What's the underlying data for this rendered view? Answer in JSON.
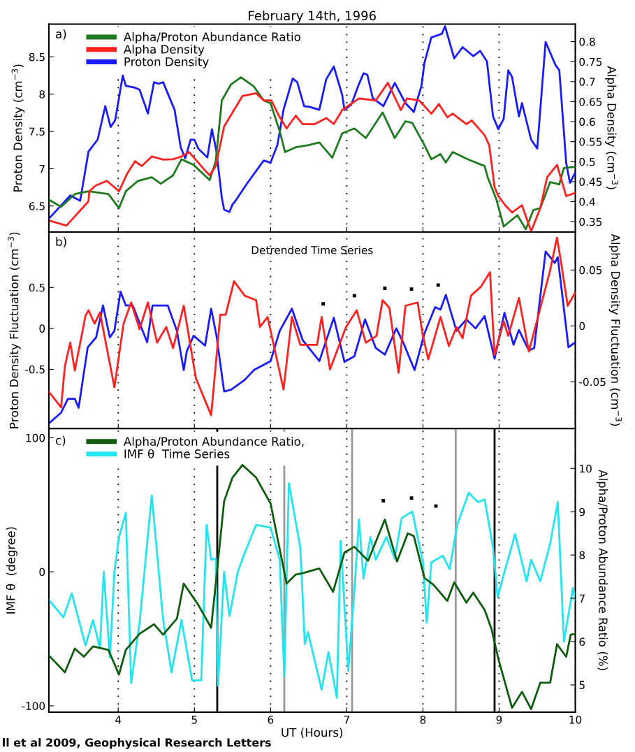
{
  "chart_data": [
    {
      "type": "line",
      "title": "February 14th, 1996",
      "ylabel": "Proton Density (cm$^{−3}$)",
      "y2label": "Alpha Density (cm$^{−3}$)",
      "annotations": [
        "a)"
      ],
      "xlim": [
        3.09,
        10
      ],
      "xticks": [
        4,
        5,
        6,
        7,
        8,
        9,
        10
      ],
      "ylim": [
        6.15,
        8.94
      ],
      "yticks": [
        6.5,
        7,
        7.5,
        8,
        8.5
      ],
      "y2lim": [
        0.324,
        0.844
      ],
      "y2ticks": [
        0.35,
        0.4,
        0.45,
        0.5,
        0.55,
        0.6,
        0.65,
        0.7,
        0.75,
        0.8
      ],
      "grid": "x",
      "tick_labels": "y",
      "legend": "top left",
      "series": [
        {
          "name": "Alpha/Proton Abundance Ratio",
          "color": "#1e7a1e",
          "axis": "y2",
          "x": [
            3.09,
            3.25,
            3.43,
            3.61,
            3.87,
            4.01,
            4.1,
            4.26,
            4.44,
            4.56,
            4.72,
            4.83,
            4.99,
            5.2,
            5.28,
            5.36,
            5.48,
            5.61,
            5.78,
            5.91,
            6.0,
            6.12,
            6.19,
            6.33,
            6.49,
            6.64,
            6.81,
            6.94,
            7.1,
            7.25,
            7.47,
            7.63,
            7.77,
            7.86,
            8.02,
            8.11,
            8.23,
            8.3,
            8.39,
            8.6,
            8.81,
            8.85,
            8.96,
            9.06,
            9.24,
            9.35,
            9.45,
            9.54,
            9.67,
            9.79,
            9.85,
            10.0
          ],
          "values": [
            0.405,
            0.387,
            0.419,
            0.426,
            0.419,
            0.384,
            0.426,
            0.452,
            0.461,
            0.445,
            0.466,
            0.506,
            0.492,
            0.454,
            0.501,
            0.653,
            0.693,
            0.711,
            0.688,
            0.653,
            0.646,
            0.576,
            0.524,
            0.536,
            0.541,
            0.548,
            0.51,
            0.571,
            0.583,
            0.559,
            0.623,
            0.559,
            0.601,
            0.597,
            0.541,
            0.506,
            0.519,
            0.498,
            0.524,
            0.505,
            0.489,
            0.461,
            0.408,
            0.338,
            0.366,
            0.331,
            0.379,
            0.384,
            0.449,
            0.443,
            0.484,
            0.487
          ]
        },
        {
          "name": "Alpha Density",
          "color": "#ff2020",
          "axis": "y2",
          "x": [
            3.11,
            3.32,
            3.61,
            3.62,
            3.7,
            3.85,
            4.01,
            4.12,
            4.22,
            4.31,
            4.44,
            4.59,
            4.72,
            4.83,
            4.93,
            5.14,
            5.2,
            5.28,
            5.39,
            5.5,
            5.63,
            5.81,
            5.91,
            6.01,
            6.12,
            6.21,
            6.33,
            6.42,
            6.58,
            6.73,
            6.83,
            6.94,
            7.16,
            7.38,
            7.54,
            7.71,
            7.79,
            7.95,
            8.11,
            8.21,
            8.32,
            8.39,
            8.57,
            8.64,
            8.81,
            8.87,
            8.94,
            8.99,
            9.08,
            9.17,
            9.3,
            9.42,
            9.54,
            9.63,
            9.76,
            9.88,
            10.0
          ],
          "values": [
            0.352,
            0.34,
            0.401,
            0.426,
            0.44,
            0.452,
            0.426,
            0.471,
            0.501,
            0.489,
            0.513,
            0.505,
            0.506,
            0.513,
            0.524,
            0.478,
            0.466,
            0.489,
            0.588,
            0.623,
            0.664,
            0.671,
            0.653,
            0.653,
            0.611,
            0.583,
            0.615,
            0.594,
            0.594,
            0.609,
            0.594,
            0.629,
            0.658,
            0.653,
            0.697,
            0.629,
            0.658,
            0.653,
            0.62,
            0.644,
            0.611,
            0.62,
            0.594,
            0.603,
            0.566,
            0.541,
            0.436,
            0.414,
            0.391,
            0.373,
            0.391,
            0.326,
            0.384,
            0.461,
            0.492,
            0.414,
            0.422
          ]
        },
        {
          "name": "Proton Density",
          "color": "#1a1aff",
          "axis": "y",
          "x": [
            3.09,
            3.37,
            3.5,
            3.61,
            3.73,
            3.83,
            3.9,
            3.96,
            4.06,
            4.1,
            4.21,
            4.28,
            4.39,
            4.47,
            4.53,
            4.59,
            4.65,
            4.74,
            4.82,
            4.88,
            4.95,
            5.0,
            5.05,
            5.17,
            5.23,
            5.29,
            5.36,
            5.39,
            5.46,
            5.5,
            5.54,
            5.69,
            5.91,
            6.0,
            6.09,
            6.17,
            6.29,
            6.35,
            6.44,
            6.51,
            6.64,
            6.73,
            6.83,
            6.94,
            6.97,
            7.06,
            7.15,
            7.22,
            7.27,
            7.34,
            7.48,
            7.63,
            7.77,
            7.88,
            7.98,
            8.02,
            8.11,
            8.25,
            8.29,
            8.41,
            8.52,
            8.66,
            8.75,
            8.84,
            8.92,
            8.99,
            9.06,
            9.12,
            9.17,
            9.26,
            9.3,
            9.42,
            9.5,
            9.61,
            9.74,
            9.79,
            9.88,
            9.93,
            10.0
          ],
          "values": [
            6.33,
            6.64,
            6.57,
            7.23,
            7.39,
            7.84,
            7.56,
            7.65,
            8.25,
            8.11,
            8.09,
            8.06,
            7.74,
            8.16,
            8.14,
            8.16,
            8.01,
            7.79,
            7.29,
            7.14,
            7.39,
            7.39,
            7.27,
            7.15,
            7.53,
            7.23,
            6.61,
            6.45,
            6.42,
            6.52,
            6.57,
            6.8,
            7.11,
            7.08,
            7.32,
            7.79,
            8.21,
            8.16,
            7.84,
            7.83,
            7.79,
            8.2,
            8.37,
            7.99,
            7.79,
            7.86,
            8.11,
            8.28,
            8.26,
            7.95,
            7.84,
            8.15,
            7.88,
            7.76,
            8.11,
            8.42,
            8.76,
            8.81,
            8.91,
            8.48,
            8.63,
            8.51,
            8.58,
            8.44,
            7.7,
            7.53,
            7.67,
            8.32,
            8.23,
            7.7,
            7.88,
            7.39,
            7.27,
            8.7,
            8.39,
            8.32,
            7.08,
            6.81,
            6.95
          ]
        }
      ]
    },
    {
      "type": "line",
      "ylabel": "Proton Density Fluctuation (cm$^{−3}$)",
      "y2label": "Alpha Density Fluctuation (cm$^{−3}$)",
      "annotations": [
        "b)",
        "Detrended Time Series"
      ],
      "xlim": [
        3.09,
        10
      ],
      "xticks": [
        4,
        5,
        6,
        7,
        8,
        9,
        10
      ],
      "ylim": [
        -1.225,
        1.177
      ],
      "yticks": [
        -0.5,
        0,
        0.5
      ],
      "y2lim": [
        -0.092,
        0.084
      ],
      "y2ticks": [
        -0.05,
        0,
        0.05
      ],
      "grid": "x",
      "tick_labels": "y",
      "series": [
        {
          "color": "#ff2020",
          "axis": "y2",
          "x": [
            3.09,
            3.25,
            3.3,
            3.37,
            3.43,
            3.57,
            3.61,
            3.69,
            3.76,
            3.95,
            4.07,
            4.17,
            4.28,
            4.39,
            4.51,
            4.63,
            4.72,
            4.86,
            5.02,
            5.22,
            5.34,
            5.41,
            5.52,
            5.66,
            5.81,
            5.86,
            5.96,
            6.17,
            6.28,
            6.39,
            6.61,
            6.67,
            6.78,
            6.99,
            7.13,
            7.25,
            7.39,
            7.47,
            7.56,
            7.68,
            7.77,
            7.93,
            8.0,
            8.07,
            8.23,
            8.34,
            8.44,
            8.52,
            8.63,
            8.76,
            8.88,
            8.94,
            9.06,
            9.12,
            9.26,
            9.39,
            9.51,
            9.67,
            9.76,
            9.82,
            9.9,
            10.0
          ],
          "values": [
            -0.059,
            -0.073,
            -0.036,
            -0.015,
            -0.04,
            0.009,
            0.014,
            0.002,
            0.012,
            -0.055,
            0.002,
            0.021,
            -0.003,
            0.021,
            -0.015,
            -0.001,
            -0.02,
            0.018,
            -0.047,
            -0.08,
            0.01,
            0.01,
            0.04,
            0.027,
            0.023,
            -0.001,
            0.008,
            -0.057,
            0.008,
            -0.017,
            -0.017,
            0.008,
            -0.039,
            -0.001,
            0.014,
            -0.015,
            -0.009,
            0.023,
            0.016,
            -0.042,
            0.018,
            0.021,
            -0.009,
            -0.03,
            0.008,
            -0.018,
            -0.001,
            -0.011,
            0.027,
            0.035,
            0.048,
            -0.026,
            0.004,
            -0.009,
            0.025,
            -0.023,
            0.008,
            0.05,
            0.079,
            0.054,
            0.018,
            0.03
          ]
        },
        {
          "color": "#1a1aff",
          "axis": "y",
          "x": [
            3.09,
            3.25,
            3.34,
            3.43,
            3.48,
            3.6,
            3.71,
            3.8,
            3.89,
            3.95,
            4.03,
            4.1,
            4.19,
            4.38,
            4.45,
            4.58,
            4.65,
            4.77,
            4.86,
            4.9,
            4.99,
            5.14,
            5.22,
            5.29,
            5.39,
            5.48,
            5.66,
            5.78,
            6.0,
            6.12,
            6.28,
            6.42,
            6.64,
            6.83,
            6.97,
            7.1,
            7.24,
            7.38,
            7.5,
            7.65,
            7.74,
            7.89,
            8.02,
            8.16,
            8.23,
            8.3,
            8.44,
            8.57,
            8.69,
            8.81,
            8.94,
            9.07,
            9.19,
            9.26,
            9.39,
            9.46,
            9.61,
            9.73,
            9.77,
            9.91,
            10.0
          ],
          "values": [
            -1.16,
            -1.03,
            -0.86,
            -0.86,
            -0.97,
            -0.23,
            -0.11,
            0.28,
            -0.11,
            -0.03,
            0.45,
            0.28,
            0.28,
            -0.17,
            0.28,
            0.28,
            0.28,
            -0.03,
            -0.51,
            -0.28,
            -0.09,
            -0.21,
            0.24,
            -0.09,
            -0.77,
            -0.75,
            -0.63,
            -0.51,
            -0.4,
            -0.03,
            0.24,
            -0.14,
            -0.4,
            0.13,
            -0.41,
            -0.34,
            0.11,
            -0.24,
            -0.32,
            0.0,
            -0.17,
            -0.51,
            -0.06,
            0.26,
            0.23,
            0.41,
            -0.03,
            0.11,
            0.0,
            0.15,
            -0.37,
            0.19,
            -0.2,
            -0.02,
            -0.27,
            -0.24,
            0.94,
            0.8,
            0.87,
            -0.23,
            -0.17
          ]
        },
        {
          "type": "scatter",
          "color": "#000000",
          "axis": "y",
          "marker": "square",
          "x": [
            6.69,
            7.1,
            7.5,
            7.85,
            8.2
          ],
          "values": [
            0.3,
            0.4,
            0.49,
            0.48,
            0.53
          ]
        }
      ]
    },
    {
      "type": "line",
      "xlabel": "UT (Hours)",
      "ylabel": "IMF θ  (degree)",
      "y2label": "Alpha/Proton Abundance Ratio (%)",
      "annotations": [
        "c)",
        "ll et al 2009, Geophysical Research Letters"
      ],
      "xlim": [
        3.09,
        10
      ],
      "xticks": [
        4,
        5,
        6,
        7,
        8,
        9,
        10
      ],
      "ylim": [
        -104.7,
        106.8
      ],
      "yticks": [
        -100,
        0,
        100
      ],
      "y2lim": [
        4.37,
        10.92
      ],
      "y2ticks": [
        5,
        6,
        7,
        8,
        9,
        10
      ],
      "grid": "x",
      "legend": "top left",
      "ref_lines": [
        {
          "axis": "x",
          "value": 5.3,
          "color": "#000000"
        },
        {
          "axis": "x",
          "value": 6.18,
          "color": "#999999"
        },
        {
          "axis": "x",
          "value": 7.07,
          "color": "#999999"
        },
        {
          "axis": "x",
          "value": 8.43,
          "color": "#999999"
        },
        {
          "axis": "x",
          "value": 8.94,
          "color": "#000000"
        }
      ],
      "series": [
        {
          "name": "Alpha/Proton Abundance Ratio,",
          "color": "#0d5c0d",
          "axis": "y2",
          "x": [
            3.09,
            3.3,
            3.43,
            3.55,
            3.67,
            3.87,
            4.01,
            4.1,
            4.28,
            4.47,
            4.59,
            4.77,
            4.86,
            5.05,
            5.22,
            5.31,
            5.39,
            5.5,
            5.63,
            5.81,
            6.0,
            6.21,
            6.33,
            6.42,
            6.64,
            6.82,
            6.97,
            7.1,
            7.28,
            7.5,
            7.66,
            7.8,
            7.88,
            8.02,
            8.14,
            8.32,
            8.41,
            8.57,
            8.66,
            8.81,
            8.9,
            8.99,
            9.17,
            9.3,
            9.42,
            9.54,
            9.67,
            9.76,
            9.88,
            9.94,
            10.0
          ],
          "values": [
            5.68,
            5.29,
            5.84,
            5.65,
            5.89,
            5.81,
            5.24,
            5.81,
            6.18,
            6.4,
            6.16,
            6.53,
            7.34,
            6.85,
            6.32,
            7.85,
            9.24,
            9.79,
            10.08,
            9.79,
            9.19,
            7.34,
            7.55,
            7.58,
            7.69,
            7.15,
            8.06,
            8.19,
            7.87,
            8.82,
            7.85,
            8.5,
            8.44,
            7.47,
            7.31,
            6.94,
            7.37,
            6.9,
            7.13,
            6.73,
            6.29,
            5.6,
            4.47,
            4.84,
            4.44,
            5.05,
            5.05,
            5.94,
            5.65,
            6.16,
            6.18
          ]
        },
        {
          "name": "IMF θ  Time Series",
          "color": "#22e5f0",
          "axis": "y",
          "x": [
            3.09,
            3.28,
            3.39,
            3.57,
            3.67,
            3.76,
            3.81,
            3.89,
            3.95,
            4.01,
            4.1,
            4.17,
            4.28,
            4.44,
            4.59,
            4.7,
            4.83,
            4.97,
            5.09,
            5.16,
            5.22,
            5.28,
            5.31,
            5.39,
            5.46,
            5.57,
            5.66,
            5.81,
            6.0,
            6.12,
            6.18,
            6.24,
            6.39,
            6.45,
            6.49,
            6.67,
            6.76,
            6.87,
            6.92,
            7.02,
            7.1,
            7.16,
            7.22,
            7.31,
            7.38,
            7.52,
            7.63,
            7.72,
            7.86,
            8.0,
            8.05,
            8.11,
            8.26,
            8.35,
            8.45,
            8.6,
            8.72,
            8.81,
            8.92,
            8.98,
            9.07,
            9.21,
            9.36,
            9.42,
            9.54,
            9.67,
            9.77,
            9.85,
            9.97,
            10.0
          ],
          "values": [
            -21,
            -34,
            -16,
            -55,
            -36,
            -57,
            0,
            -64,
            0,
            26,
            44,
            -83,
            -38,
            57,
            -36,
            -75,
            -36,
            -81,
            -81,
            35,
            9,
            10,
            -85,
            0,
            -33,
            0,
            14,
            35,
            33,
            9,
            -78,
            66,
            18,
            -54,
            -45,
            -88,
            -60,
            -94,
            23,
            -74,
            -14,
            39,
            -5,
            26,
            9,
            26,
            10,
            40,
            45,
            7,
            -38,
            7,
            12,
            2,
            35,
            59,
            52,
            54,
            18,
            -19,
            0,
            28,
            -7,
            9,
            -7,
            21,
            52,
            -52,
            -12,
            -22
          ]
        },
        {
          "type": "scatter",
          "color": "#000000",
          "axis": "y",
          "marker": "square",
          "x": [
            7.48,
            7.85,
            8.17
          ],
          "values": [
            53,
            55,
            49
          ]
        }
      ]
    }
  ]
}
